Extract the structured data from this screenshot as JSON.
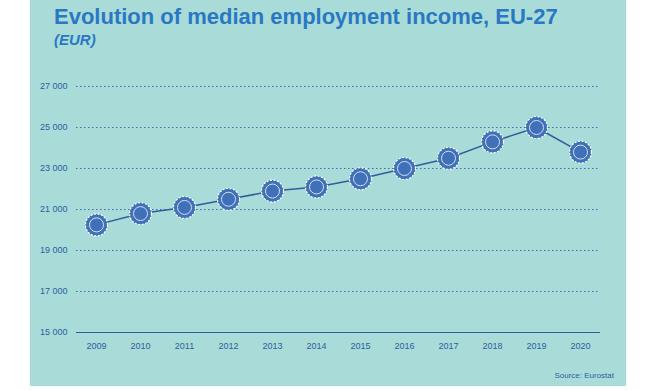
{
  "chart_data": {
    "type": "line",
    "title": "Evolution of median employment income, EU-27",
    "subtitle": "(EUR)",
    "source": "Source: Eurostat",
    "categories": [
      "2009",
      "2010",
      "2011",
      "2012",
      "2013",
      "2014",
      "2015",
      "2016",
      "2017",
      "2018",
      "2019",
      "2020"
    ],
    "values": [
      20250,
      20800,
      21100,
      21500,
      21900,
      22100,
      22500,
      23000,
      23500,
      24300,
      25000,
      23800
    ],
    "color": "#2f5d9a",
    "marker": "circle",
    "ylim": [
      15000,
      27000
    ],
    "yticks": [
      {
        "value": 15000,
        "label": "15 000"
      },
      {
        "value": 17000,
        "label": "17 000"
      },
      {
        "value": 19000,
        "label": "19 000"
      },
      {
        "value": 21000,
        "label": "21 000"
      },
      {
        "value": 23000,
        "label": "23 000"
      },
      {
        "value": 25000,
        "label": "25 000"
      },
      {
        "value": 27000,
        "label": "27 000"
      }
    ],
    "grid": true
  }
}
